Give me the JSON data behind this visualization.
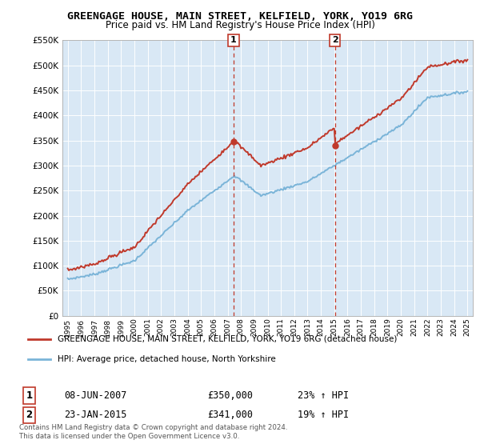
{
  "title": "GREENGAGE HOUSE, MAIN STREET, KELFIELD, YORK, YO19 6RG",
  "subtitle": "Price paid vs. HM Land Registry's House Price Index (HPI)",
  "ylabel_ticks": [
    "£0",
    "£50K",
    "£100K",
    "£150K",
    "£200K",
    "£250K",
    "£300K",
    "£350K",
    "£400K",
    "£450K",
    "£500K",
    "£550K"
  ],
  "ytick_vals": [
    0,
    50000,
    100000,
    150000,
    200000,
    250000,
    300000,
    350000,
    400000,
    450000,
    500000,
    550000
  ],
  "ylim": [
    0,
    550000
  ],
  "sale1_year": 2007.44,
  "sale1_price": 350000,
  "sale2_year": 2015.06,
  "sale2_price": 341000,
  "hpi_color": "#7ab4d8",
  "price_color": "#c0392b",
  "background_color": "#d9e8f5",
  "legend_label_price": "GREENGAGE HOUSE, MAIN STREET, KELFIELD, YORK, YO19 6RG (detached house)",
  "legend_label_hpi": "HPI: Average price, detached house, North Yorkshire",
  "table_row1_num": "1",
  "table_row1_date": "08-JUN-2007",
  "table_row1_price": "£350,000",
  "table_row1_hpi": "23% ↑ HPI",
  "table_row2_num": "2",
  "table_row2_date": "23-JAN-2015",
  "table_row2_price": "£341,000",
  "table_row2_hpi": "19% ↑ HPI",
  "footer_line1": "Contains HM Land Registry data © Crown copyright and database right 2024.",
  "footer_line2": "This data is licensed under the Open Government Licence v3.0."
}
